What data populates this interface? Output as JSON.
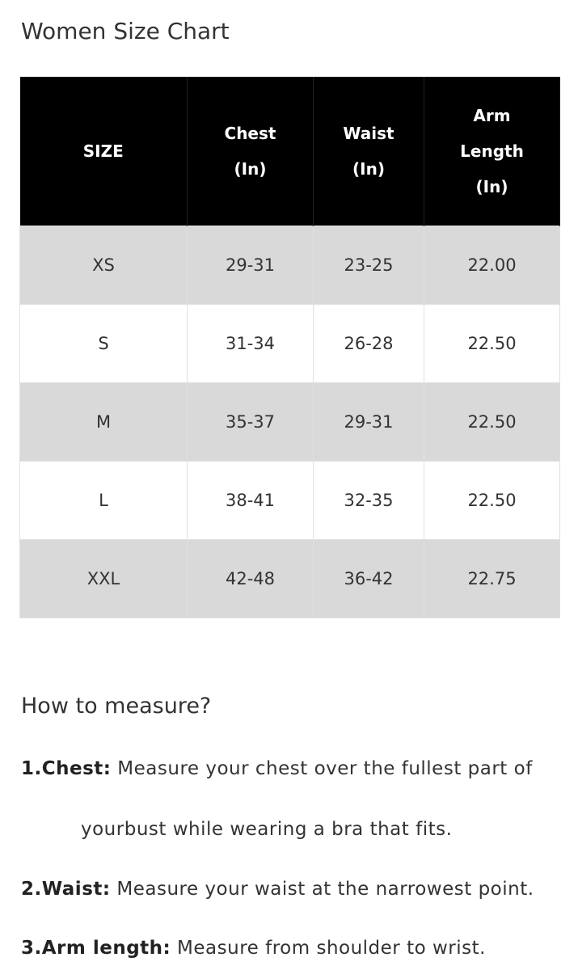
{
  "title": "Women Size Chart",
  "headers": [
    [
      "SIZE"
    ],
    [
      "Chest",
      "(In)"
    ],
    [
      "Waist",
      "(In)"
    ],
    [
      "Arm",
      "Length",
      "(In)"
    ]
  ],
  "rows": [
    [
      "XS",
      "29-31",
      "23-25",
      "22.00"
    ],
    [
      "S",
      "31-34",
      "26-28",
      "22.50"
    ],
    [
      "M",
      "35-37",
      "29-31",
      "22.50"
    ],
    [
      "L",
      "38-41",
      "32-35",
      "22.50"
    ],
    [
      "XXL",
      "42-48",
      "36-42",
      "22.75"
    ]
  ],
  "measure": {
    "heading": "How to measure?",
    "items": [
      {
        "label": "1.Chest:",
        "text": " Measure your chest over the fullest part of",
        "cont": "yourbust while wearing a bra that fits."
      },
      {
        "label": "2.Waist:",
        "text": " Measure your waist at the narrowest point."
      },
      {
        "label": "3.Arm length:",
        "text": " Measure from shoulder to wrist."
      }
    ]
  }
}
